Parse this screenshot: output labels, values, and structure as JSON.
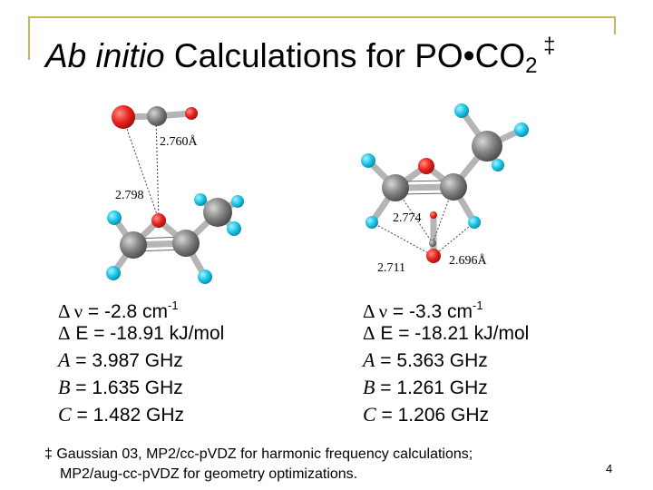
{
  "title": {
    "italic": "Ab initio",
    "main": " Calculations for PO•CO",
    "subscript": "2",
    "superscript": " ‡"
  },
  "left_structure": {
    "labels": {
      "l1": "2.760",
      "l1_unit": "Å",
      "l2": "2.798"
    },
    "properties": {
      "dnu": {
        "symbol": "Δ ν",
        "value": " = -2.8 cm",
        "exp": "-1"
      },
      "dE": {
        "symbol": "Δ",
        "value": " E = -18.91 kJ/mol"
      },
      "A": {
        "symbol": "A",
        "value": " = 3.987 GHz"
      },
      "B": {
        "symbol": "B",
        "value": " = 1.635 GHz"
      },
      "C": {
        "symbol": "C",
        "value": " = 1.482 GHz"
      }
    }
  },
  "right_structure": {
    "labels": {
      "l1": "2.774",
      "l2": "2.696",
      "l2_unit": "Å",
      "l3": "2.711"
    },
    "properties": {
      "dnu": {
        "symbol": "Δ ν",
        "value": " = -3.3 cm",
        "exp": "-1"
      },
      "dE": {
        "symbol": "Δ",
        "value": " E = -18.21 kJ/mol"
      },
      "A": {
        "symbol": "A",
        "value": " = 5.363 GHz"
      },
      "B": {
        "symbol": "B",
        "value": " = 1.261 GHz"
      },
      "C": {
        "symbol": "C",
        "value": " = 1.206 GHz"
      }
    }
  },
  "footnote": {
    "line1": "‡ Gaussian 03, MP2/cc-pVDZ for harmonic frequency calculations;",
    "line2": "MP2/aug-cc-pVDZ for geometry optimizations."
  },
  "page_number": "4",
  "colors": {
    "frame": "#c9b458",
    "oxygen": "#e8231f",
    "carbon_phosphorus": "#808080",
    "hydrogen": "#1ac6e8"
  }
}
